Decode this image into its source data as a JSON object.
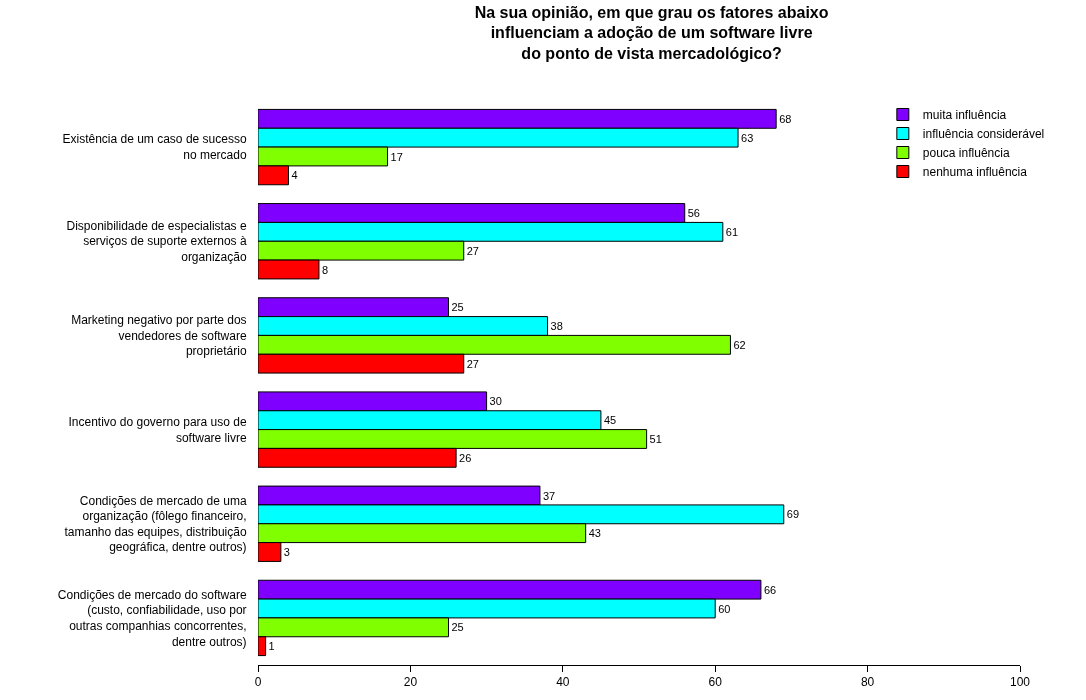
{
  "chart_data": {
    "type": "bar",
    "orientation": "horizontal",
    "title": "Na sua opinião, em que grau os fatores abaixo\ninfluenciam a adoção de um software livre\ndo ponto de vista mercadológico?",
    "categories": [
      "Existência de um caso de sucesso\nno mercado",
      "Disponibilidade de especialistas e\nserviços de suporte externos à\norganização",
      "Marketing negativo por parte dos\nvendedores de software\nproprietário",
      "Incentivo do governo para uso de\nsoftware livre",
      "Condições de mercado de uma\norganização (fôlego financeiro,\ntamanho das equipes, distribuição\ngeográfica, dentre outros)",
      "Condições de mercado do software\n(custo, confiabilidade, uso por\noutras companhias concorrentes,\ndentre outros)"
    ],
    "series": [
      {
        "name": "muita influência",
        "color": "#8000ff",
        "values": [
          68,
          56,
          25,
          30,
          37,
          66
        ]
      },
      {
        "name": "influência considerável",
        "color": "#00ffff",
        "values": [
          63,
          61,
          38,
          45,
          69,
          60
        ]
      },
      {
        "name": "pouca influência",
        "color": "#80ff00",
        "values": [
          17,
          27,
          62,
          51,
          43,
          25
        ]
      },
      {
        "name": "nenhuma influência",
        "color": "#ff0000",
        "values": [
          4,
          8,
          27,
          26,
          3,
          1
        ]
      }
    ],
    "xlim": [
      0,
      100
    ],
    "xticks": [
      0,
      20,
      40,
      60,
      80,
      100
    ],
    "data_labels": true,
    "legend": "top right"
  }
}
